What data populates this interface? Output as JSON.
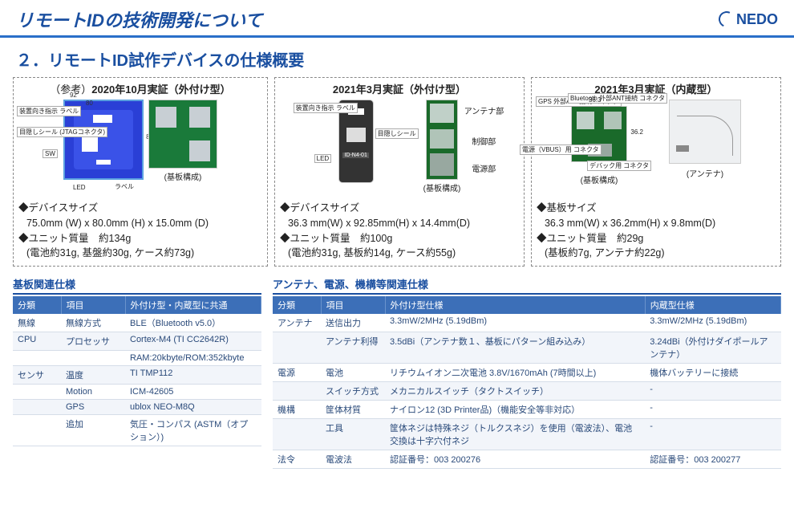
{
  "header": {
    "title": "リモートIDの技術開発について",
    "logo_text": "NEDO"
  },
  "subtitle": "２．リモートID試作デバイスの仕様概要",
  "panels": [
    {
      "title_prefix": "（参考）",
      "title": "2020年10月実証（外付け型）",
      "photo_labels": {
        "dim_w": "92",
        "dim_inner": "80",
        "dim_h": "85",
        "c1": "装置向き指示\nラベル",
        "c2": "目隠しシール\n(JTAGコネクタ)",
        "c3": "SW",
        "c4": "LED",
        "c5": "ラベル",
        "board": "(基板構成)"
      },
      "spec1_label": "デバイスサイズ",
      "spec1_value": "75.0mm (W) x 80.0mm (H) x 15.0mm (D)",
      "spec2_label": "ユニット質量　約134g",
      "spec2_value": "(電池約31g, 基盤約30g, ケース約73g)"
    },
    {
      "title": "2021年3月実証（外付け型）",
      "photo_labels": {
        "c1": "装置向き指示\nラベル",
        "c2": "LED",
        "c3": "目隠しシール",
        "id": "ID-N4-01",
        "a1": "アンテナ部",
        "a2": "制御部",
        "a3": "電源部",
        "board": "(基板構成)"
      },
      "spec1_label": "デバイスサイズ",
      "spec1_value": "36.3 mm(W) x 92.85mm(H) x 14.4mm(D)",
      "spec2_label": "ユニット質量　約100g",
      "spec2_value": "(電池約31g, 基板約14g, ケース約55g)"
    },
    {
      "title": "2021年3月実証（内蔵型）",
      "photo_labels": {
        "c1": "GPS\n外部ANT接続\nコネクタ",
        "c2": "Bluetooth\n外部ANT接続\nコネクタ",
        "c3": "電源（VBUS）用\nコネクタ",
        "c4": "デバック用\nコネクタ",
        "d1": "36.3",
        "d2": "36.2",
        "board": "(基板構成)",
        "ant": "(アンテナ)"
      },
      "spec1_label": "基板サイズ",
      "spec1_value": "36.3 mm(W) x 36.2mm(H) x 9.8mm(D)",
      "spec2_label": "ユニット質量　約29g",
      "spec2_value": "(基板約7g, アンテナ約22g)"
    }
  ],
  "table_left": {
    "caption": "基板関連仕様",
    "headers": [
      "分類",
      "項目",
      "外付け型・内蔵型に共通"
    ],
    "rows": [
      [
        "無線",
        "無線方式",
        "BLE（Bluetooth v5.0）"
      ],
      [
        "CPU",
        "プロセッサ",
        "Cortex-M4 (TI CC2642R)"
      ],
      [
        "",
        "",
        "RAM:20kbyte/ROM:352kbyte"
      ],
      [
        "センサ",
        "温度",
        "TI TMP112"
      ],
      [
        "",
        "Motion",
        "ICM-42605"
      ],
      [
        "",
        "GPS",
        "ublox NEO-M8Q"
      ],
      [
        "",
        "追加",
        "気圧・コンパス (ASTM（オプション）)"
      ]
    ]
  },
  "table_right": {
    "caption": "アンテナ、電源、機構等関連仕様",
    "headers": [
      "分類",
      "項目",
      "外付け型仕様",
      "内蔵型仕様"
    ],
    "rows": [
      [
        "アンテナ",
        "送信出力",
        "3.3mW/2MHz (5.19dBm)",
        "3.3mW/2MHz (5.19dBm)"
      ],
      [
        "",
        "アンテナ利得",
        "3.5dBi（アンテナ数１、基板にパターン組み込み）",
        "3.24dBi（外付けダイポールアンテナ）"
      ],
      [
        "電源",
        "電池",
        "リチウムイオン二次電池 3.8V/1670mAh (7時間以上)",
        "機体バッテリーに接続"
      ],
      [
        "",
        "スイッチ方式",
        "メカニカルスイッチ（タクトスイッチ）",
        "-"
      ],
      [
        "機構",
        "筐体材質",
        "ナイロン12 (3D Printer品)（機能安全等非対応）",
        "-"
      ],
      [
        "",
        "工具",
        "筐体ネジは特殊ネジ（トルクスネジ）を使用（電波法）、電池交換は十字穴付ネジ",
        "-"
      ],
      [
        "法令",
        "電波法",
        "認証番号：003 200276",
        "認証番号：003 200277"
      ]
    ]
  }
}
